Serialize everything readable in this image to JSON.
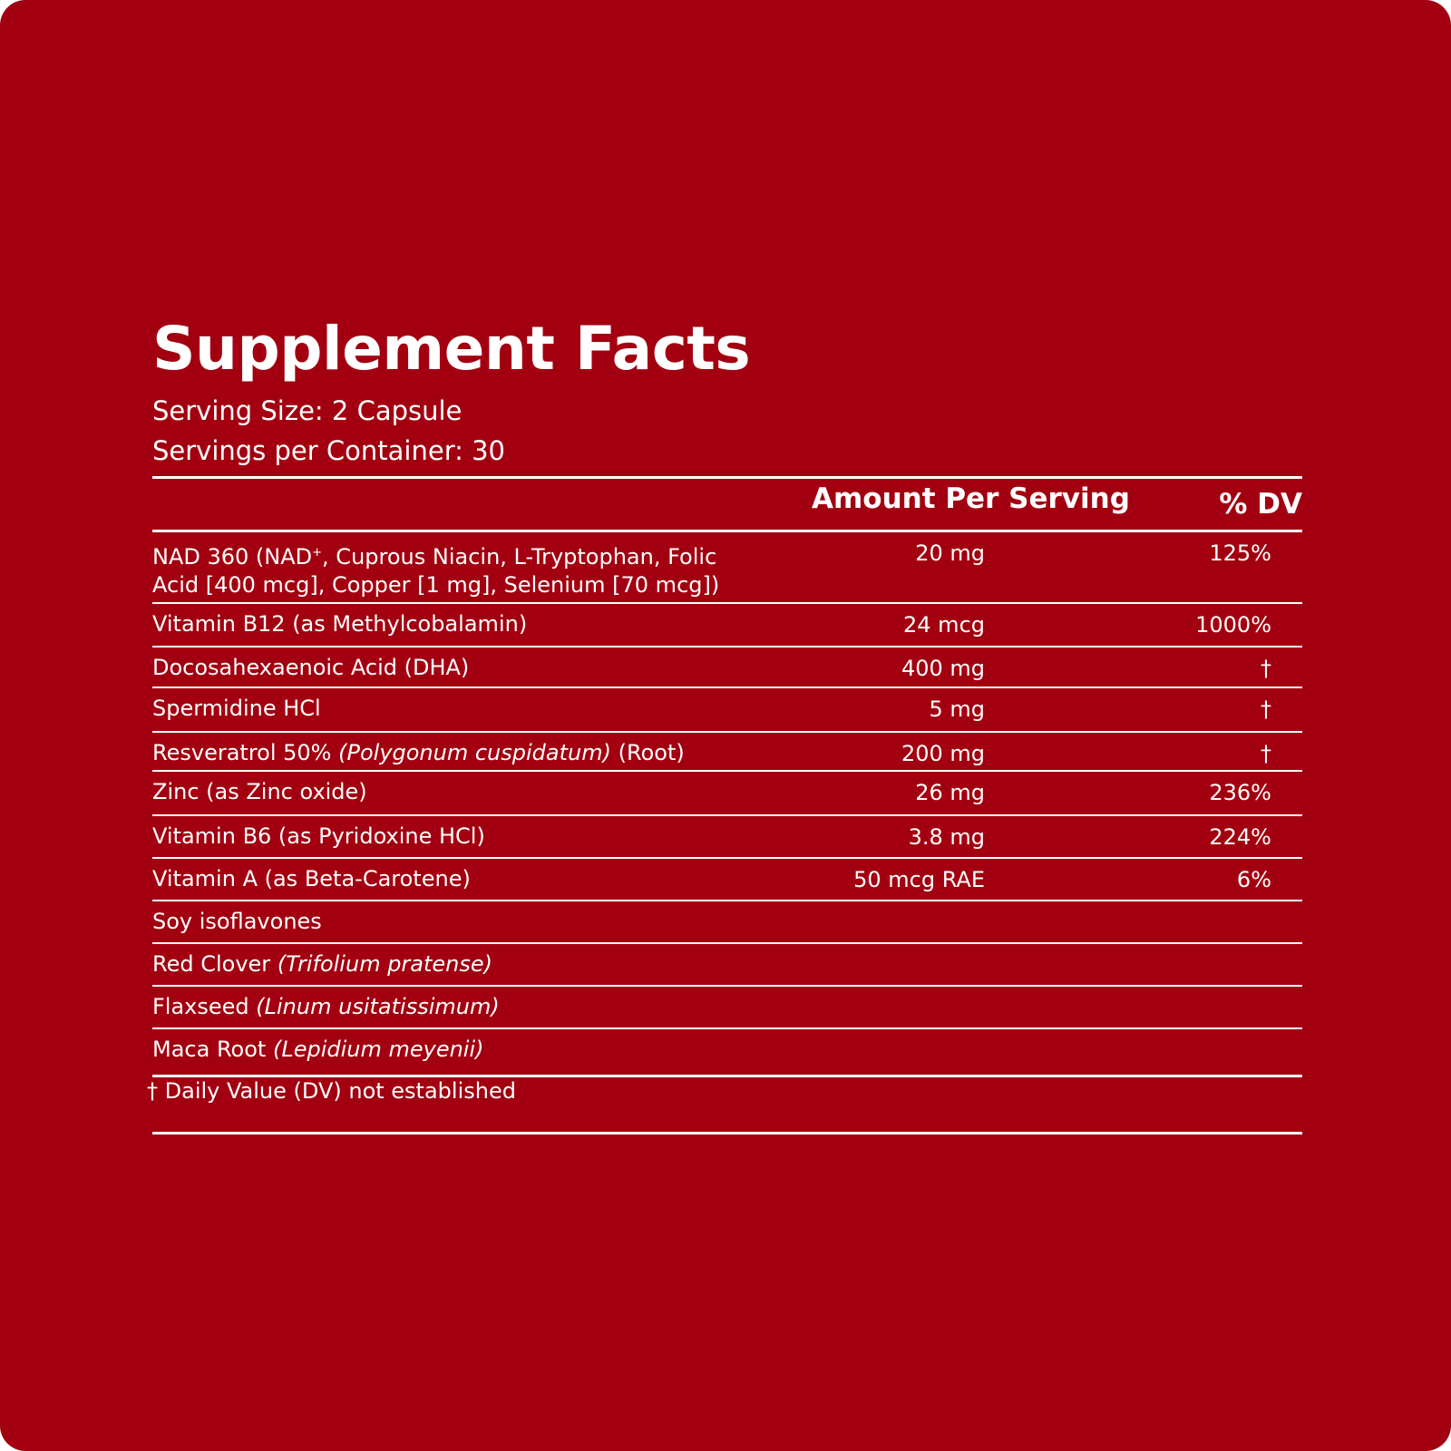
{
  "label": {
    "title": "Supplement Facts",
    "serving_size": "Serving Size: 2 Capsule",
    "servings_per_container": "Servings per Container: 30",
    "col_amount": "Amount Per Serving",
    "col_dv": "% DV"
  },
  "rows": [
    {
      "name_line1_a": "NAD 360 (NAD",
      "name_sup": "+",
      "name_line1_b": ", Cuprous Niacin, L-Tryptophan, Folic Acid [400 mcg], Copper [1 mg], Selenium [70 mcg])",
      "amount": "20 mg",
      "dv": "125%"
    },
    {
      "name": "Vitamin B12 (as Methylcobalamin)",
      "amount": "24 mcg",
      "dv": "1000%"
    },
    {
      "name": "Docosahexaenoic Acid (DHA)",
      "amount": "400 mg",
      "dv": "†"
    },
    {
      "name": "Spermidine HCl",
      "amount": "5 mg",
      "dv": "†"
    },
    {
      "name": "Resveratrol 50% ",
      "name_italic": "(Polygonum cuspidatum)",
      "name_tail": " (Root)",
      "amount": "200 mg",
      "dv": "†"
    },
    {
      "name": "Zinc (as Zinc oxide)",
      "amount": "26 mg",
      "dv": "236%"
    },
    {
      "name": "Vitamin B6 (as Pyridoxine HCl)",
      "amount": "3.8 mg",
      "dv": "224%"
    },
    {
      "name": "Vitamin A (as Beta-Carotene)",
      "amount": "50 mcg RAE",
      "dv": "6%"
    },
    {
      "name": "Soy isoflavones"
    },
    {
      "name": "Red Clover ",
      "name_italic": "(Trifolium pratense)"
    },
    {
      "name": "Flaxseed ",
      "name_italic": "(Linum usitatissimum)"
    },
    {
      "name": "Maca Root ",
      "name_italic": "(Lepidium meyenii)"
    }
  ],
  "footnote": "† Daily Value (DV) not established",
  "colors": {
    "background": "#a20010",
    "text": "#ffffff"
  }
}
